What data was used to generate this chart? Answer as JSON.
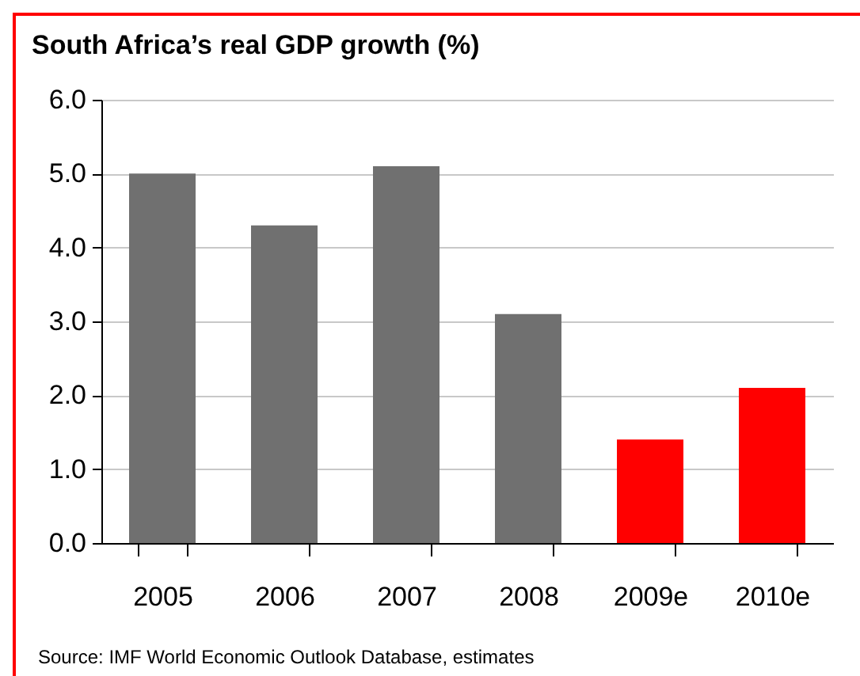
{
  "chart_data": {
    "type": "bar",
    "title": "South Africa’s real GDP growth (%)",
    "categories": [
      "2005",
      "2006",
      "2007",
      "2008",
      "2009e",
      "2010e"
    ],
    "values": [
      5.0,
      4.3,
      5.1,
      3.1,
      1.4,
      2.1
    ],
    "colors": [
      "#707070",
      "#707070",
      "#707070",
      "#707070",
      "#ff0000",
      "#ff0000"
    ],
    "ylim": [
      0,
      6
    ],
    "yticks": [
      {
        "value": 0,
        "label": "0.0"
      },
      {
        "value": 1,
        "label": "1.0"
      },
      {
        "value": 2,
        "label": "2.0"
      },
      {
        "value": 3,
        "label": "3.0"
      },
      {
        "value": 4,
        "label": "4.0"
      },
      {
        "value": 5,
        "label": "5.0"
      },
      {
        "value": 6,
        "label": "6.0"
      }
    ],
    "grid": "y",
    "annotations": [
      "Source: IMF World Economic Outlook Database, estimates"
    ]
  }
}
